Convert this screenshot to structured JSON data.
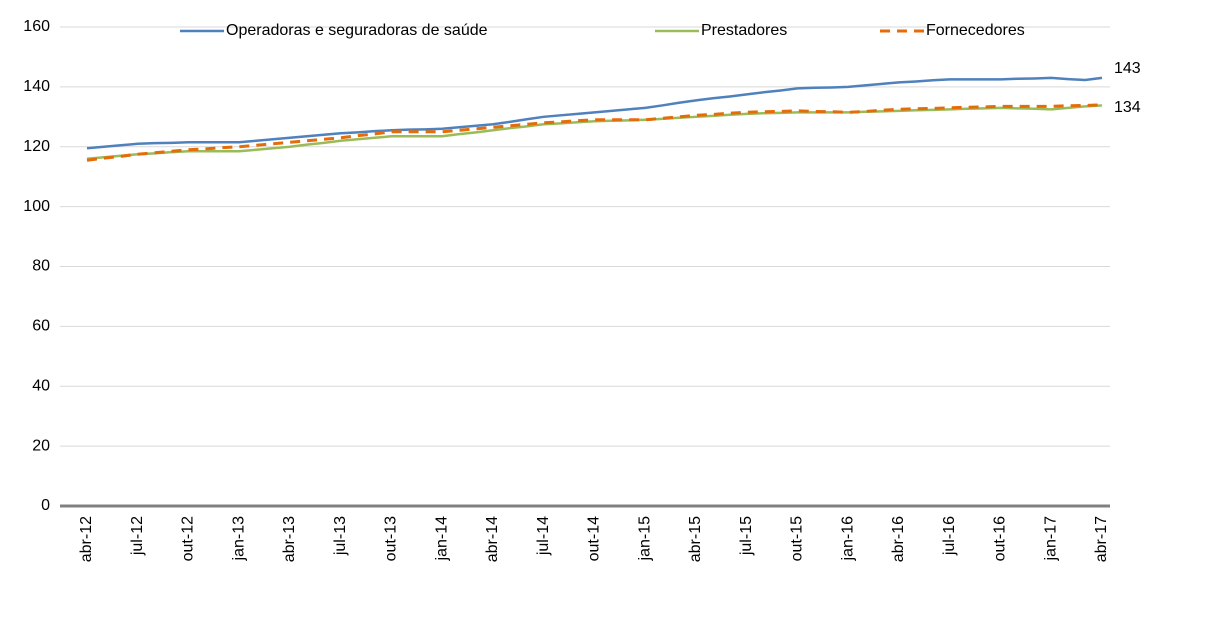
{
  "chart_data": {
    "type": "line",
    "categories": [
      "abr-12",
      null,
      null,
      "jul-12",
      null,
      null,
      "out-12",
      null,
      null,
      "jan-13",
      null,
      null,
      "abr-13",
      null,
      null,
      "jul-13",
      null,
      null,
      "out-13",
      null,
      null,
      "jan-14",
      null,
      null,
      "abr-14",
      null,
      null,
      "jul-14",
      null,
      null,
      "out-14",
      null,
      null,
      "jan-15",
      null,
      null,
      "abr-15",
      null,
      null,
      "jul-15",
      null,
      null,
      "out-15",
      null,
      null,
      "jan-16",
      null,
      null,
      "abr-16",
      null,
      null,
      "jul-16",
      null,
      null,
      "out-16",
      null,
      null,
      "jan-17",
      null,
      null,
      "abr-17"
    ],
    "series": [
      {
        "name": "Operadoras e seguradoras de saúde",
        "color": "#4f81bd",
        "dashed": false,
        "values": [
          119.5,
          120,
          120.5,
          121,
          121.2,
          121.3,
          121.5,
          121.5,
          121.5,
          121.5,
          122,
          122.5,
          123,
          123.5,
          124,
          124.5,
          124.8,
          125.2,
          125.5,
          125.7,
          125.8,
          126,
          126.5,
          127,
          127.5,
          128.3,
          129.2,
          130,
          130.5,
          131,
          131.5,
          132,
          132.5,
          133,
          133.8,
          134.7,
          135.5,
          136.2,
          136.8,
          137.5,
          138.2,
          138.8,
          139.5,
          139.7,
          139.8,
          140,
          140.5,
          141,
          141.5,
          141.8,
          142.2,
          142.5,
          142.5,
          142.5,
          142.5,
          142.7,
          142.8,
          143,
          142.6,
          142.3,
          143
        ]
      },
      {
        "name": "Prestadores",
        "color": "#9bbb59",
        "dashed": false,
        "values": [
          116,
          116.5,
          117,
          117.5,
          117.8,
          118.2,
          118.5,
          118.5,
          118.5,
          118.5,
          119,
          119.5,
          120,
          120.7,
          121.3,
          122,
          122.5,
          123,
          123.5,
          123.5,
          123.5,
          123.5,
          124.2,
          124.8,
          125.5,
          126.2,
          126.8,
          127.5,
          127.8,
          128.2,
          128.5,
          128.7,
          128.8,
          129,
          129.3,
          129.7,
          130,
          130.3,
          130.7,
          131,
          131.2,
          131.3,
          131.5,
          131.5,
          131.5,
          131.5,
          131.7,
          131.8,
          132,
          132.2,
          132.3,
          132.5,
          132.7,
          132.8,
          133,
          132.8,
          132.7,
          132.5,
          133,
          133.5,
          133.8
        ]
      },
      {
        "name": "Fornecedores",
        "color": "#e46c0a",
        "dashed": true,
        "values": [
          115.5,
          116.2,
          116.8,
          117.5,
          118,
          118.5,
          119,
          119.3,
          119.7,
          120,
          120.5,
          121,
          121.5,
          122,
          122.5,
          123,
          123.7,
          124.3,
          125,
          125,
          125,
          125,
          125.5,
          126,
          126.5,
          127,
          127.5,
          128,
          128.3,
          128.7,
          129,
          129,
          129,
          129,
          129.5,
          130,
          130.5,
          130.8,
          131.2,
          131.5,
          131.7,
          131.8,
          132,
          131.8,
          131.7,
          131.5,
          131.8,
          132.2,
          132.5,
          132.7,
          132.8,
          133,
          133.2,
          133.3,
          133.5,
          133.5,
          133.5,
          133.5,
          133.7,
          133.8,
          134
        ]
      }
    ],
    "end_labels": [
      "chart_data.series.0.values.60",
      "chart_data.series.2.values.60"
    ],
    "ylim": [
      0,
      160
    ],
    "yticks": [
      0,
      20,
      40,
      60,
      80,
      100,
      120,
      140,
      160
    ],
    "grid": true,
    "legend": "top"
  }
}
